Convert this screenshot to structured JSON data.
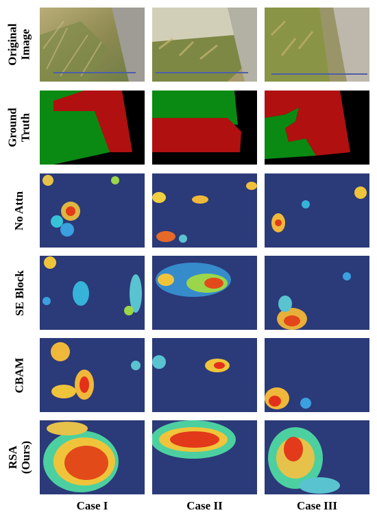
{
  "rows": [
    {
      "label": "Original\nImage"
    },
    {
      "label": "Ground\nTruth"
    },
    {
      "label": "No Attn"
    },
    {
      "label": "SE Block"
    },
    {
      "label": "CBAM"
    },
    {
      "label": "RSA\n(Ours)"
    }
  ],
  "columns": [
    {
      "label": "Case I"
    },
    {
      "label": "Case II"
    },
    {
      "label": "Case III"
    }
  ],
  "colors": {
    "ground_truth_lodged": "#b01010",
    "ground_truth_upright": "#0a8a12",
    "ground_truth_background": "#000000",
    "heatmap_background": "#2b3a78"
  }
}
